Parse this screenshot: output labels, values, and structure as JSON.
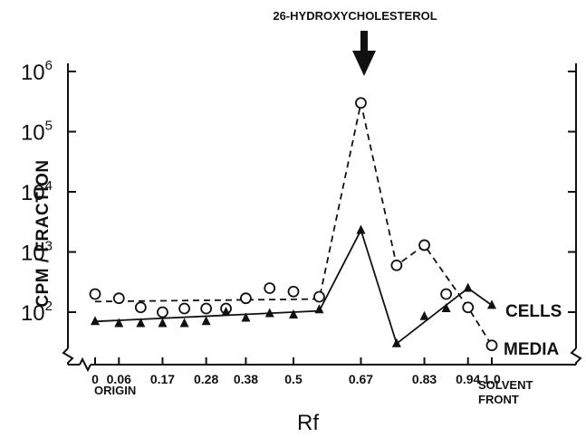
{
  "chart_data": {
    "type": "line",
    "title": "",
    "xlabel": "Rf",
    "ylabel": "CPM / FRACTION",
    "y_scale": "log",
    "ylim": [
      10,
      1000000
    ],
    "xlim": [
      0,
      1.0
    ],
    "grid": false,
    "x_ticks": [
      0,
      0.06,
      0.17,
      0.28,
      0.38,
      0.5,
      0.67,
      0.83,
      0.94,
      1.0
    ],
    "x_tick_labels": [
      "0",
      "0.06",
      "0.17",
      "0.28",
      "0.38",
      "0.5",
      "0.67",
      "0.83",
      "0.94",
      "1.0"
    ],
    "y_ticks": [
      100,
      1000,
      10000,
      100000,
      1000000
    ],
    "y_tick_labels": [
      {
        "base": "10",
        "exp": "2"
      },
      {
        "base": "10",
        "exp": "3"
      },
      {
        "base": "10",
        "exp": "4"
      },
      {
        "base": "10",
        "exp": "5"
      },
      {
        "base": "10",
        "exp": "6"
      }
    ],
    "x_annotations": [
      {
        "x": 0,
        "text": "ORIGIN"
      },
      {
        "x": 1.0,
        "lines": [
          "SOLVENT",
          "FRONT"
        ]
      }
    ],
    "peak_annotation": {
      "x": 0.67,
      "text": "26-HYDROXYCHOLESTEROL"
    },
    "series": [
      {
        "name": "MEDIA",
        "marker": "open-circle",
        "line_style": "dashed",
        "points": [
          {
            "x": 0.0,
            "y": 200
          },
          {
            "x": 0.06,
            "y": 170
          },
          {
            "x": 0.115,
            "y": 120
          },
          {
            "x": 0.17,
            "y": 100
          },
          {
            "x": 0.225,
            "y": 115
          },
          {
            "x": 0.28,
            "y": 115
          },
          {
            "x": 0.33,
            "y": 115
          },
          {
            "x": 0.38,
            "y": 170
          },
          {
            "x": 0.44,
            "y": 250
          },
          {
            "x": 0.5,
            "y": 220
          },
          {
            "x": 0.565,
            "y": 180
          },
          {
            "x": 0.67,
            "y": 300000
          },
          {
            "x": 0.76,
            "y": 600
          },
          {
            "x": 0.83,
            "y": 1300
          },
          {
            "x": 0.885,
            "y": 200
          },
          {
            "x": 0.94,
            "y": 120
          },
          {
            "x": 1.0,
            "y": 28
          }
        ],
        "trend": [
          {
            "x": 0.0,
            "y": 150
          },
          {
            "x": 0.565,
            "y": 165
          },
          {
            "x": 0.67,
            "y": 300000
          },
          {
            "x": 0.76,
            "y": 600
          },
          {
            "x": 0.83,
            "y": 1300
          },
          {
            "x": 0.94,
            "y": 120
          },
          {
            "x": 1.0,
            "y": 28
          }
        ]
      },
      {
        "name": "CELLS",
        "marker": "filled-triangle",
        "line_style": "solid",
        "points": [
          {
            "x": 0.0,
            "y": 70
          },
          {
            "x": 0.06,
            "y": 65
          },
          {
            "x": 0.115,
            "y": 65
          },
          {
            "x": 0.17,
            "y": 65
          },
          {
            "x": 0.225,
            "y": 65
          },
          {
            "x": 0.28,
            "y": 70
          },
          {
            "x": 0.33,
            "y": 100
          },
          {
            "x": 0.38,
            "y": 80
          },
          {
            "x": 0.44,
            "y": 95
          },
          {
            "x": 0.5,
            "y": 90
          },
          {
            "x": 0.565,
            "y": 110
          },
          {
            "x": 0.67,
            "y": 2300
          },
          {
            "x": 0.76,
            "y": 30
          },
          {
            "x": 0.83,
            "y": 85
          },
          {
            "x": 0.885,
            "y": 115
          },
          {
            "x": 0.94,
            "y": 250
          },
          {
            "x": 1.0,
            "y": 130
          }
        ],
        "trend": [
          {
            "x": 0.0,
            "y": 70
          },
          {
            "x": 0.565,
            "y": 105
          },
          {
            "x": 0.67,
            "y": 2300
          },
          {
            "x": 0.76,
            "y": 30
          },
          {
            "x": 0.94,
            "y": 250
          },
          {
            "x": 1.0,
            "y": 130
          }
        ]
      }
    ],
    "colors": {
      "ink": "#111111",
      "background": "#ffffff"
    }
  }
}
